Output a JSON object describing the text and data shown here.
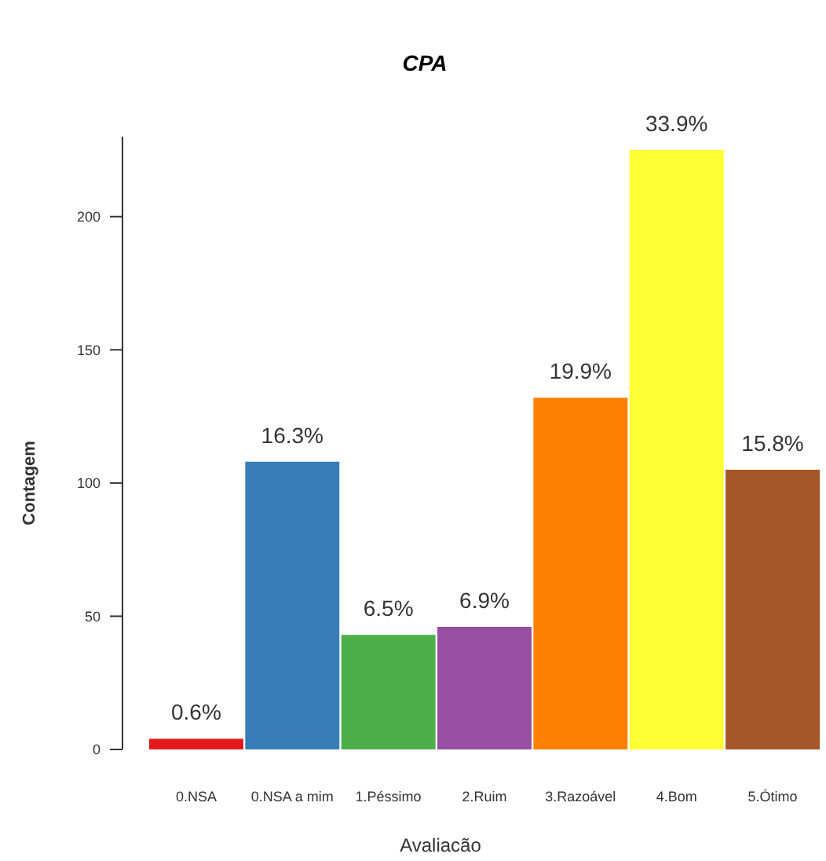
{
  "chart_data": {
    "type": "bar",
    "title": "CPA",
    "xlabel": "Avaliacão",
    "ylabel": "Contagem",
    "categories": [
      "0.NSA",
      "0.NSA a mim",
      "1.Péssimo",
      "2.Ruim",
      "3.Razoável",
      "4.Bom",
      "5.Ótimo"
    ],
    "values": [
      4,
      108,
      43,
      46,
      132,
      225,
      105
    ],
    "colors": [
      "#e41a1c",
      "#377eb8",
      "#4daf4a",
      "#984ea3",
      "#ff7f00",
      "#ffff33",
      "#a65628"
    ],
    "annotations": [
      {
        "text": "0.6%",
        "x": "0.NSA",
        "y": 4
      },
      {
        "text": "16.3%",
        "x": "0.NSA a mim",
        "y": 108
      },
      {
        "text": "6.5%",
        "x": "1.Péssimo",
        "y": 43
      },
      {
        "text": "6.9%",
        "x": "2.Ruim",
        "y": 46
      },
      {
        "text": "19.9%",
        "x": "3.Razoável",
        "y": 132
      },
      {
        "text": "33.9%",
        "x": "4.Bom",
        "y": 225
      },
      {
        "text": "15.8%",
        "x": "5.Ótimo",
        "y": 105
      }
    ],
    "ylim": [
      0,
      230
    ],
    "yticks": [
      0,
      50,
      100,
      150,
      200
    ],
    "grid": false,
    "legend": false
  }
}
